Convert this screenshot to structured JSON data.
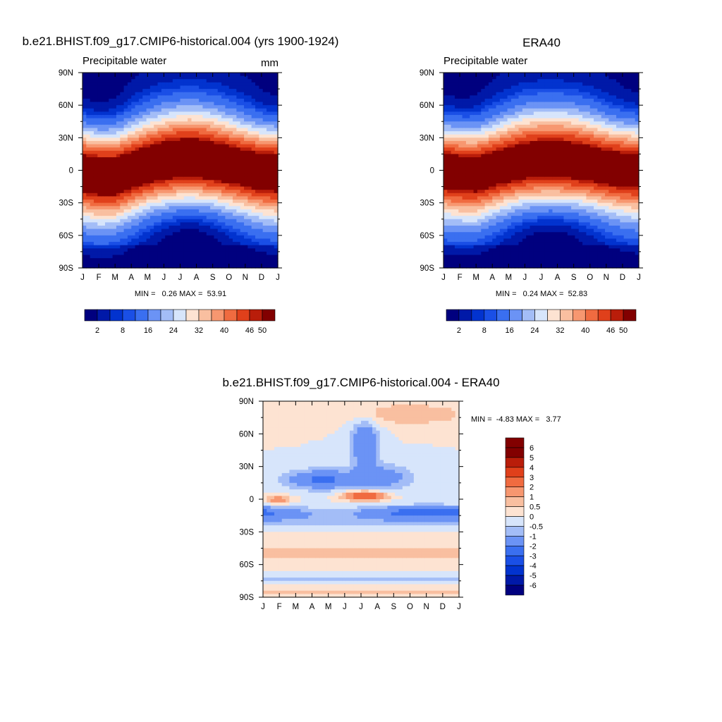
{
  "chart_data": [
    {
      "type": "heatmap",
      "title": "b.e21.BHIST.f09_g17.CMIP6-historical.004 (yrs 1900-1924)",
      "left_label": "Precipitable water",
      "units": "mm",
      "months": [
        "J",
        "F",
        "M",
        "A",
        "M",
        "J",
        "J",
        "A",
        "S",
        "O",
        "N",
        "D",
        "J"
      ],
      "lat_ticks": [
        "90N",
        "60N",
        "30N",
        "0",
        "30S",
        "60S",
        "90S"
      ],
      "ylim": [
        -90,
        90
      ],
      "stats_text": "MIN =   0.26 MAX =  53.91",
      "min": 0.26,
      "max": 53.91,
      "colorbar_levels": [
        2,
        4,
        6,
        8,
        12,
        16,
        20,
        24,
        28,
        32,
        36,
        40,
        44,
        46,
        50
      ],
      "colorbar_tick_labels": [
        "2",
        "8",
        "16",
        "24",
        "32",
        "40",
        "46",
        "50"
      ],
      "field": {
        "itcz_lat_by_month": [
          -2,
          -5,
          -5,
          0,
          5,
          8,
          10,
          10,
          8,
          5,
          2,
          -1,
          -2
        ],
        "peak": 53
      }
    },
    {
      "type": "heatmap",
      "title": "ERA40",
      "left_label": "Precipitable water",
      "months": [
        "J",
        "F",
        "M",
        "A",
        "M",
        "J",
        "J",
        "A",
        "S",
        "O",
        "N",
        "D",
        "J"
      ],
      "lat_ticks": [
        "90N",
        "60N",
        "30N",
        "0",
        "30S",
        "60S",
        "90S"
      ],
      "ylim": [
        -90,
        90
      ],
      "stats_text": "MIN =   0.24 MAX =  52.83",
      "min": 0.24,
      "max": 52.83,
      "colorbar_levels": [
        2,
        4,
        6,
        8,
        12,
        16,
        20,
        24,
        28,
        32,
        36,
        40,
        44,
        46,
        50
      ],
      "colorbar_tick_labels": [
        "2",
        "8",
        "16",
        "24",
        "32",
        "40",
        "46",
        "50"
      ],
      "field": {
        "itcz_lat_by_month": [
          0,
          -2,
          -3,
          1,
          5,
          8,
          9,
          9,
          8,
          6,
          3,
          1,
          0
        ],
        "peak": 52
      }
    },
    {
      "type": "heatmap",
      "title": "b.e21.BHIST.f09_g17.CMIP6-historical.004 - ERA40",
      "months": [
        "J",
        "F",
        "M",
        "A",
        "M",
        "J",
        "J",
        "A",
        "S",
        "O",
        "N",
        "D",
        "J"
      ],
      "lat_ticks": [
        "90N",
        "60N",
        "30N",
        "0",
        "30S",
        "60S",
        "90S"
      ],
      "ylim": [
        -90,
        90
      ],
      "stats_text": "MIN =  -4.83 MAX =   3.77",
      "min": -4.83,
      "max": 3.77,
      "colorbar_levels": [
        -6,
        -5,
        -4,
        -3,
        -2,
        -1,
        -0.5,
        0,
        0.5,
        1,
        2,
        3,
        4,
        5,
        6
      ],
      "colorbar_tick_labels": [
        "6",
        "5",
        "4",
        "3",
        "2",
        "1",
        "0.5",
        "0",
        "-0.5",
        "-1",
        "-2",
        "-3",
        "-4",
        "-5",
        "-6"
      ]
    }
  ],
  "colors": {
    "absolute_palette": [
      "#00007f",
      "#0019a8",
      "#0233cf",
      "#1a4fe6",
      "#3a6ff0",
      "#6b93f5",
      "#a3bdf7",
      "#d7e5fb",
      "#fde3d2",
      "#f9bfa0",
      "#f79770",
      "#f06b40",
      "#e0401b",
      "#b91d0a",
      "#820000"
    ],
    "difference_palette": [
      "#00007f",
      "#0019a8",
      "#0233cf",
      "#1a4fe6",
      "#3a6ff0",
      "#6b93f5",
      "#a3bdf7",
      "#d7e5fb",
      "#fde3d2",
      "#f9bfa0",
      "#f79770",
      "#f06b40",
      "#e0401b",
      "#b91d0a",
      "#820000",
      "#820000"
    ]
  }
}
